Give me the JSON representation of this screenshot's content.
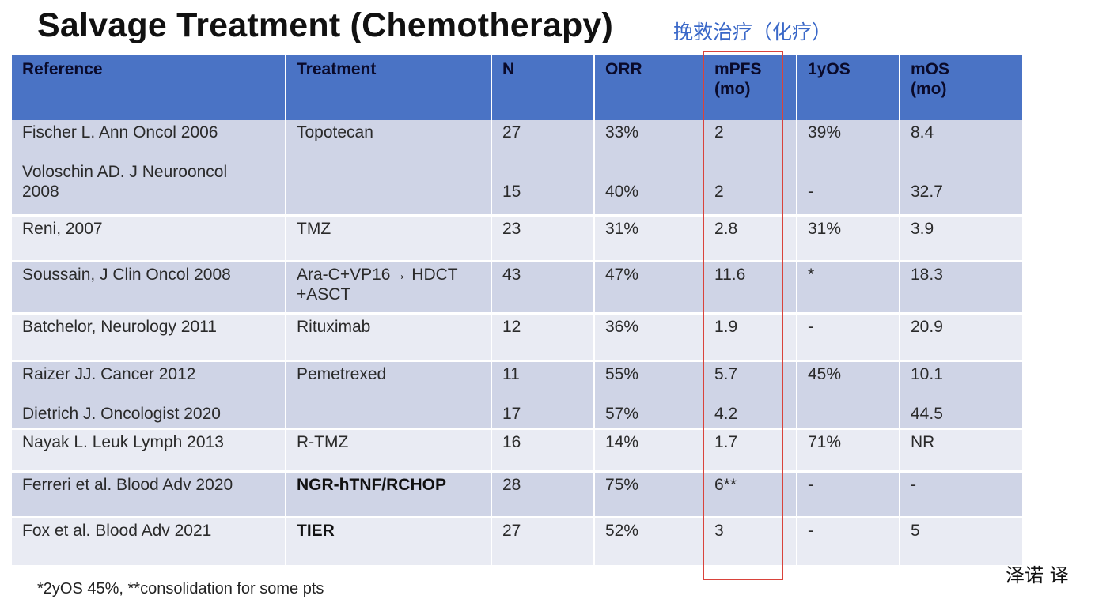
{
  "title": "Salvage Treatment (Chemotherapy)",
  "subtitle": "挽救治疗（化疗）",
  "headers": [
    {
      "line1": "Reference",
      "line2": ""
    },
    {
      "line1": "Treatment",
      "line2": ""
    },
    {
      "line1": "N",
      "line2": ""
    },
    {
      "line1": "ORR",
      "line2": ""
    },
    {
      "line1": "mPFS",
      "line2": "(mo)"
    },
    {
      "line1": "1yOS",
      "line2": ""
    },
    {
      "line1": "mOS",
      "line2": "(mo)"
    }
  ],
  "rows": [
    {
      "shade": "dark",
      "reference": [
        "Fischer L. Ann Oncol 2006",
        "",
        "Voloschin AD. J Neurooncol",
        "2008"
      ],
      "treatment": [
        "Topotecan"
      ],
      "n": [
        "27",
        "",
        "",
        "15"
      ],
      "orr": [
        "33%",
        "",
        "",
        "40%"
      ],
      "mpfs": [
        "2",
        "",
        "",
        "2"
      ],
      "yos": [
        "39%",
        "",
        "",
        "-"
      ],
      "mos": [
        "8.4",
        "",
        "",
        "32.7"
      ]
    },
    {
      "shade": "light",
      "reference": [
        "Reni, 2007"
      ],
      "treatment": [
        "TMZ"
      ],
      "n": [
        "23"
      ],
      "orr": [
        "31%"
      ],
      "mpfs": [
        "2.8"
      ],
      "yos": [
        "31%"
      ],
      "mos": [
        "3.9"
      ]
    },
    {
      "shade": "dark",
      "reference": [
        "Soussain, J Clin Oncol 2008"
      ],
      "treatment": [
        "Ara-C+VP16→ HDCT",
        "+ASCT"
      ],
      "n": [
        "43"
      ],
      "orr": [
        "47%"
      ],
      "mpfs": [
        "11.6"
      ],
      "yos": [
        "*"
      ],
      "mos": [
        "18.3"
      ]
    },
    {
      "shade": "light",
      "reference": [
        "Batchelor, Neurology 2011"
      ],
      "treatment": [
        "Rituximab"
      ],
      "n": [
        "12"
      ],
      "orr": [
        "36%"
      ],
      "mpfs": [
        "1.9"
      ],
      "yos": [
        "-"
      ],
      "mos": [
        "20.9"
      ]
    },
    {
      "shade": "dark",
      "reference": [
        "Raizer JJ. Cancer 2012",
        "",
        "Dietrich J. Oncologist 2020"
      ],
      "treatment": [
        "Pemetrexed"
      ],
      "n": [
        "11",
        "",
        "17"
      ],
      "orr": [
        "55%",
        "",
        "57%"
      ],
      "mpfs": [
        "5.7",
        "",
        "4.2"
      ],
      "yos": [
        "45%"
      ],
      "mos": [
        "10.1",
        "",
        "44.5"
      ]
    },
    {
      "shade": "light",
      "reference": [
        "Nayak L. Leuk Lymph 2013"
      ],
      "treatment": [
        "R-TMZ"
      ],
      "n": [
        "16"
      ],
      "orr": [
        "14%"
      ],
      "mpfs": [
        "1.7"
      ],
      "yos": [
        "71%"
      ],
      "mos": [
        "NR"
      ]
    },
    {
      "shade": "dark",
      "reference": [
        "Ferreri et al. Blood Adv 2020"
      ],
      "treatment": [
        "NGR-hTNF/RCHOP"
      ],
      "bold_treatment": true,
      "n": [
        "28"
      ],
      "orr": [
        "75%"
      ],
      "mpfs": [
        "6**"
      ],
      "yos": [
        "-"
      ],
      "mos": [
        "-"
      ]
    },
    {
      "shade": "light",
      "reference": [
        "Fox et al. Blood Adv 2021"
      ],
      "treatment": [
        "TIER"
      ],
      "bold_treatment": true,
      "n": [
        "27"
      ],
      "orr": [
        "52%"
      ],
      "mpfs": [
        "3"
      ],
      "yos": [
        "-"
      ],
      "mos": [
        "5"
      ]
    }
  ],
  "footnote": "*2yOS 45%, **consolidation for some pts",
  "watermark": "泽诺 译"
}
